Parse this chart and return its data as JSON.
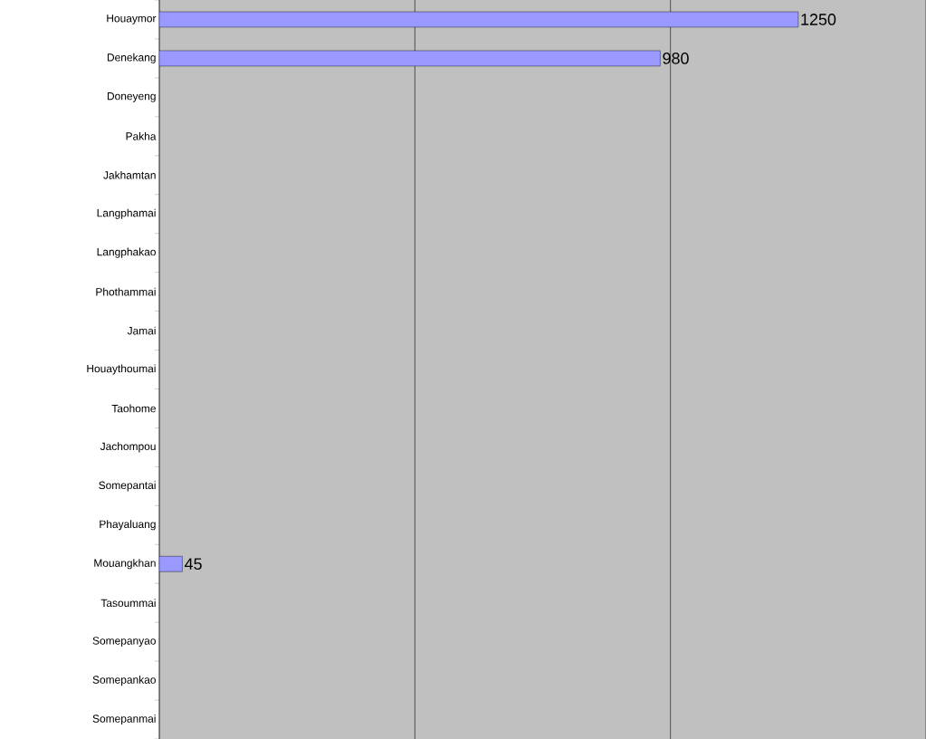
{
  "chart_data": {
    "type": "bar",
    "orientation": "horizontal",
    "categories": [
      "Houaymor",
      "Denekang",
      "Doneyeng",
      "Pakha",
      "Jakhamtan",
      "Langphamai",
      "Langphakao",
      "Phothammai",
      "Jamai",
      "Houaythoumai",
      "Taohome",
      "Jachompou",
      "Somepantai",
      "Phayaluang",
      "Mouangkhan",
      "Tasoummai",
      "Somepanyao",
      "Somepankao",
      "Somepanmai"
    ],
    "values": [
      1250,
      980,
      null,
      null,
      null,
      null,
      null,
      null,
      null,
      null,
      null,
      null,
      null,
      null,
      45,
      null,
      null,
      null,
      null
    ],
    "color": "#9999ff",
    "xlim": [
      0,
      1500
    ],
    "xticks": [
      {
        "value": 0,
        "label": null
      },
      {
        "value": 500,
        "label": null
      },
      {
        "value": 1000,
        "label": null
      },
      {
        "value": 1500,
        "label": null
      }
    ],
    "tick_labels": "y",
    "grid": "x",
    "data_labels": true
  }
}
